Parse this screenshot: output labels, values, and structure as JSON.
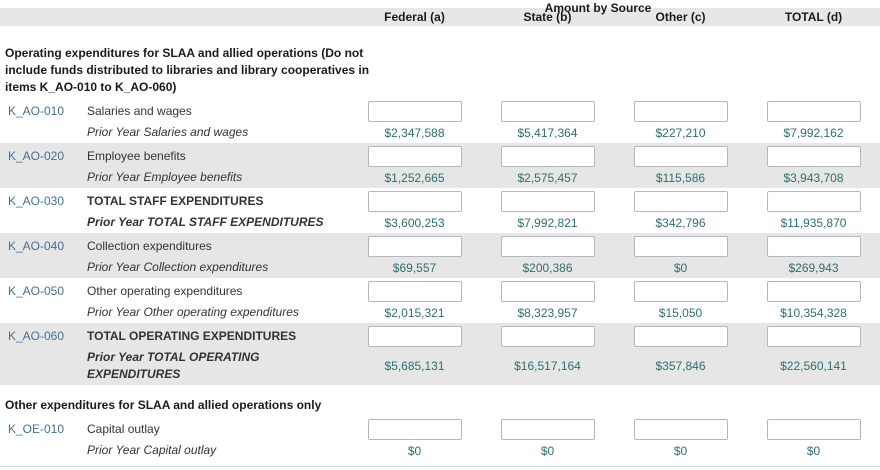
{
  "header": {
    "group_title": "Amount by Source",
    "columns": [
      "Federal (a)",
      "State (b)",
      "Other (c)",
      "TOTAL (d)"
    ]
  },
  "sections": [
    {
      "title": "Operating expenditures for SLAA and allied operations (Do not include funds distributed to libraries and library cooperatives in items K_AO-010 to K_AO-060)",
      "rows": [
        {
          "code": "K_AO-010",
          "label": "Salaries and wages",
          "prior_label": "Prior Year Salaries and wages",
          "bold": false,
          "input_values": [
            "",
            "",
            "",
            ""
          ],
          "prior_values": [
            "$2,347,588",
            "$5,417,364",
            "$227,210",
            "$7,992,162"
          ]
        },
        {
          "code": "K_AO-020",
          "label": "Employee benefits",
          "prior_label": "Prior Year Employee benefits",
          "bold": false,
          "input_values": [
            "",
            "",
            "",
            ""
          ],
          "prior_values": [
            "$1,252,665",
            "$2,575,457",
            "$115,586",
            "$3,943,708"
          ]
        },
        {
          "code": "K_AO-030",
          "label": "TOTAL STAFF EXPENDITURES",
          "prior_label": "Prior Year TOTAL STAFF EXPENDITURES",
          "bold": true,
          "input_values": [
            "",
            "",
            "",
            ""
          ],
          "prior_values": [
            "$3,600,253",
            "$7,992,821",
            "$342,796",
            "$11,935,870"
          ]
        },
        {
          "code": "K_AO-040",
          "label": "Collection expenditures",
          "prior_label": "Prior Year Collection expenditures",
          "bold": false,
          "input_values": [
            "",
            "",
            "",
            ""
          ],
          "prior_values": [
            "$69,557",
            "$200,386",
            "$0",
            "$269,943"
          ]
        },
        {
          "code": "K_AO-050",
          "label": "Other operating expenditures",
          "prior_label": "Prior Year Other operating expenditures",
          "bold": false,
          "input_values": [
            "",
            "",
            "",
            ""
          ],
          "prior_values": [
            "$2,015,321",
            "$8,323,957",
            "$15,050",
            "$10,354,328"
          ]
        },
        {
          "code": "K_AO-060",
          "label": "TOTAL OPERATING EXPENDITURES",
          "prior_label": "Prior Year TOTAL OPERATING EXPENDITURES",
          "bold": true,
          "input_values": [
            "",
            "",
            "",
            ""
          ],
          "prior_values": [
            "$5,685,131",
            "$16,517,164",
            "$357,846",
            "$22,560,141"
          ]
        }
      ]
    },
    {
      "title": "Other expenditures for SLAA and allied operations only",
      "rows": [
        {
          "code": "K_OE-010",
          "label": "Capital outlay",
          "prior_label": "Prior Year Capital outlay",
          "bold": false,
          "input_values": [
            "",
            "",
            "",
            ""
          ],
          "prior_values": [
            "$0",
            "$0",
            "$0",
            "$0"
          ]
        }
      ]
    }
  ],
  "colors": {
    "header_band_bg": "#e7e7e7",
    "row_alt_bg": "#e6e6e6",
    "code_color": "#456f94",
    "value_color": "#2d6f6f",
    "label_color": "#333333",
    "heading_color": "#1a1a1a",
    "input_border": "#b2b8be",
    "divider_color": "#cfe0ea"
  }
}
